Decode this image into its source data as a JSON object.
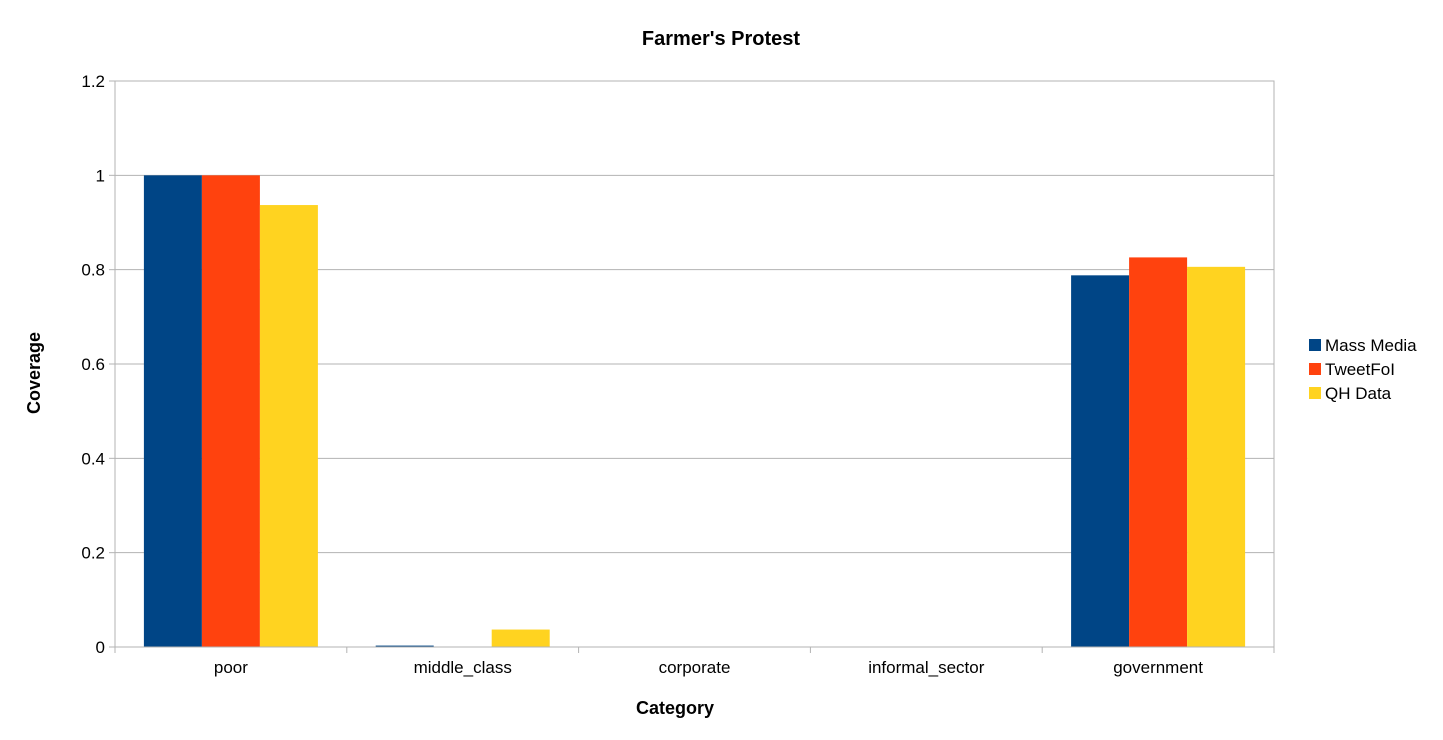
{
  "chart_data": {
    "type": "bar",
    "title": "Farmer's Protest",
    "xlabel": "Category",
    "ylabel": "Coverage",
    "categories": [
      "poor",
      "middle_class",
      "corporate",
      "informal_sector",
      "government"
    ],
    "series": [
      {
        "name": "Mass Media",
        "color": "#004586",
        "values": [
          1.0,
          0.003,
          0.0,
          0.0,
          0.788
        ]
      },
      {
        "name": "TweetFoI",
        "color": "#ff420e",
        "values": [
          1.0,
          0.001,
          0.0,
          0.0,
          0.826
        ]
      },
      {
        "name": "QH Data",
        "color": "#ffd320",
        "values": [
          0.937,
          0.037,
          0.0,
          0.0,
          0.806
        ]
      }
    ],
    "ylim": [
      0,
      1.2
    ],
    "yticks": [
      0,
      0.2,
      0.4,
      0.6,
      0.8,
      1,
      1.2
    ],
    "ytick_labels": [
      "0",
      "0.2",
      "0.4",
      "0.6",
      "0.8",
      "1",
      "1.2"
    ],
    "grid": true,
    "legend_position": "right"
  }
}
